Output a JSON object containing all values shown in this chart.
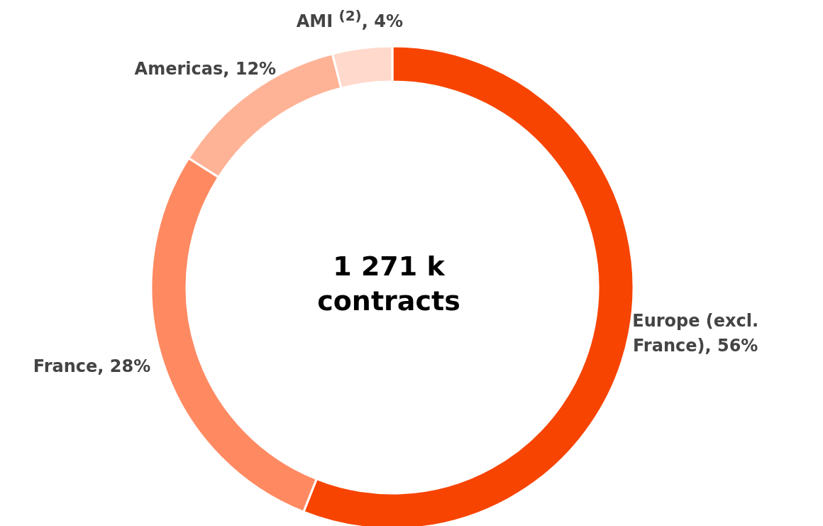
{
  "chart_data": {
    "type": "donut",
    "title": "1 271 k contracts",
    "categories": [
      "Europe (excl. France)",
      "France",
      "Americas",
      "AMI $^{(2)}$"
    ],
    "values": [
      56,
      28,
      12,
      4
    ],
    "value_labels": [
      ", 56%",
      ", 28%",
      ", 12%",
      ", 4%"
    ],
    "colors": [
      "#f74400",
      "#ff8a62",
      "#ffb396",
      "#ffd9cc"
    ]
  }
}
